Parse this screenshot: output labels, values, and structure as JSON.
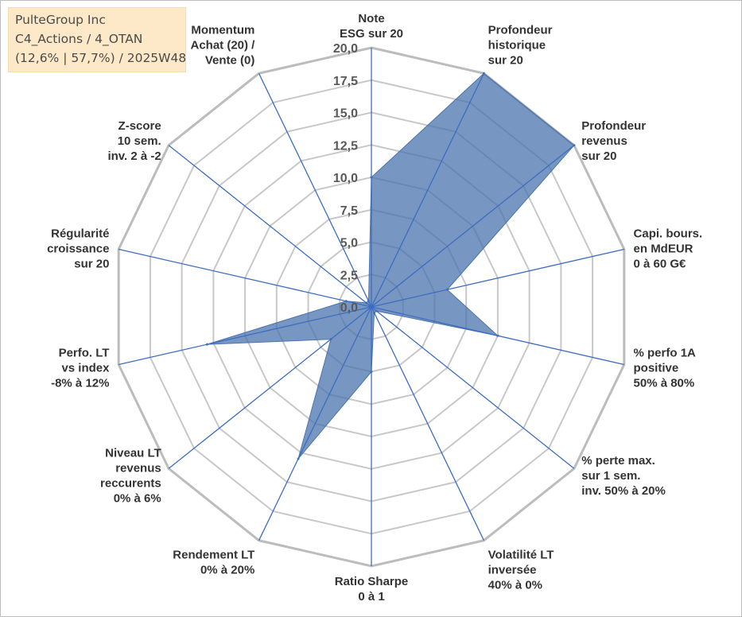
{
  "info_box": {
    "line1": "PulteGroup Inc",
    "line2": "C4_Actions / 4_OTAN",
    "line3": "(12,6% | 57,7%) / 2025W48"
  },
  "chart_data": {
    "type": "radar",
    "rmax": 20,
    "tick_values": [
      0,
      2.5,
      5,
      7.5,
      10,
      12.5,
      15,
      17.5,
      20
    ],
    "tick_labels": [
      "0,0",
      "2,5",
      "5,0",
      "7,5",
      "10,0",
      "12,5",
      "15,0",
      "17,5",
      "20,0"
    ],
    "axes": [
      {
        "label": [
          "Note",
          "ESG sur 20"
        ]
      },
      {
        "label": [
          "Profondeur",
          "historique",
          "sur 20"
        ]
      },
      {
        "label": [
          "Profondeur",
          "revenus",
          "sur 20"
        ]
      },
      {
        "label": [
          "Capi. bours.",
          "en MdEUR",
          "0 à 60 G€"
        ]
      },
      {
        "label": [
          "% perfo 1A",
          "positive",
          "50% à 80%"
        ]
      },
      {
        "label": [
          "% perte max.",
          "sur 1 sem.",
          "inv. 50% à 20%"
        ]
      },
      {
        "label": [
          "Volatilité LT",
          "inversée",
          "40% à 0%"
        ]
      },
      {
        "label": [
          "Ratio Sharpe",
          "0 à 1"
        ]
      },
      {
        "label": [
          "Rendement LT",
          "0% à 20%"
        ]
      },
      {
        "label": [
          "Niveau LT",
          "revenus",
          "reccurents",
          "0% à 6%"
        ]
      },
      {
        "label": [
          "Perfo. LT",
          "vs index",
          "-8% à 12%"
        ]
      },
      {
        "label": [
          "Régularité",
          "croissance",
          "sur 20"
        ]
      },
      {
        "label": [
          "Z-score",
          "10 sem.",
          "inv. 2 à -2"
        ]
      },
      {
        "label": [
          "Momentum",
          "Achat (20) /",
          "Vente (0)"
        ]
      }
    ],
    "values": [
      10,
      20,
      20,
      6,
      10,
      0.5,
      0.5,
      5,
      13,
      4,
      13,
      2,
      0.5,
      0.5
    ],
    "colors": {
      "fill": "#4a74ad",
      "fill_opacity": 0.75,
      "axis_line": "#3d6cc0",
      "grid": "#c8c8c8",
      "grid_outer": "#bcbcbc"
    }
  }
}
